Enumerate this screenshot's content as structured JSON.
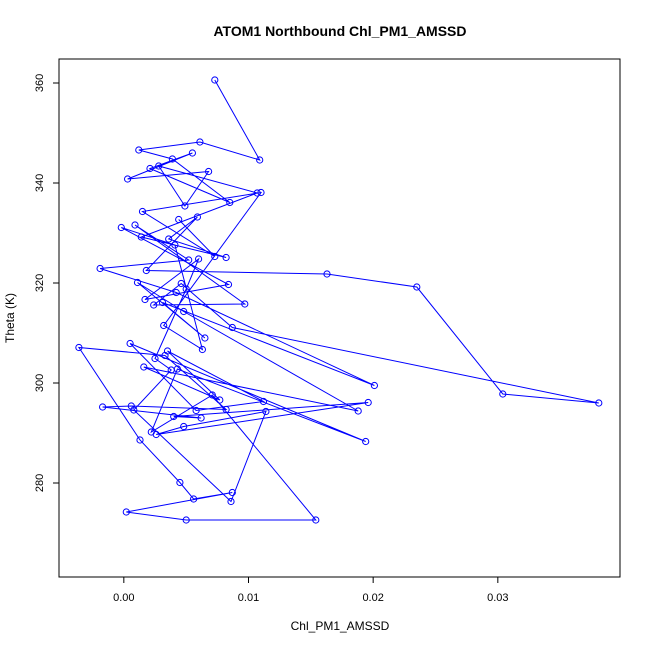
{
  "chart_data": {
    "type": "line",
    "title": "ATOM1 Northbound Chl_PM1_AMSSD",
    "xlabel": "Chl_PM1_AMSSD",
    "ylabel": "Theta (K)",
    "xlim": [
      -0.0052,
      0.0398
    ],
    "ylim": [
      261.2,
      364.8
    ],
    "xticks": [
      0.0,
      0.01,
      0.02,
      0.03
    ],
    "xtick_labels": [
      "0.00",
      "0.01",
      "0.02",
      "0.03"
    ],
    "yticks": [
      280,
      300,
      320,
      340,
      360
    ],
    "ytick_labels": [
      "280",
      "300",
      "320",
      "340",
      "360"
    ],
    "grid": false,
    "legend": "none",
    "series_color": "#0000ff",
    "markers": "open-circle",
    "series": [
      {
        "x": [
          0.0073,
          0.0109,
          0.0061,
          0.0012,
          0.0039,
          0.0085,
          0.0021,
          0.0055,
          0.0003,
          0.0068,
          0.0049,
          0.0028,
          0.0107,
          0.0014,
          0.0082,
          0.0036,
          0.0059,
          0.0018,
          0.0163,
          0.0235,
          0.0304,
          0.0381,
          0.0087,
          0.0046,
          0.0024,
          0.0097,
          0.0009,
          0.0052,
          -0.0019,
          0.0042,
          0.0201,
          0.0031,
          0.0065,
          0.0011,
          0.0048,
          0.0188,
          0.0016,
          0.0077,
          0.0035,
          0.0112,
          0.0058,
          0.0005,
          0.0194,
          0.0043,
          0.0022,
          0.0071,
          0.0154,
          0.005,
          0.0002,
          0.0087,
          0.0056,
          0.0045,
          0.0013,
          -0.0036,
          0.0033,
          0.0082,
          0.0006,
          -0.0017,
          0.0062,
          0.004,
          0.0196,
          0.0026,
          0.0048,
          0.0114,
          0.0086,
          0.0008,
          0.0038,
          0.0025,
          0.005,
          0.006,
          0.0017,
          0.0084,
          -0.0002,
          0.0041,
          0.0063,
          0.0032,
          0.011,
          0.0015,
          0.0073,
          0.0044
        ],
        "y": [
          360.6,
          344.6,
          348.2,
          346.6,
          344.8,
          336.1,
          342.9,
          346.0,
          340.8,
          342.3,
          335.4,
          343.4,
          338.0,
          329.2,
          325.1,
          328.8,
          333.2,
          322.5,
          321.8,
          319.2,
          297.8,
          296.0,
          311.1,
          319.9,
          315.6,
          315.8,
          331.6,
          324.6,
          322.9,
          318.1,
          299.5,
          316.1,
          309.0,
          320.1,
          314.3,
          294.4,
          303.2,
          296.6,
          306.4,
          296.3,
          294.5,
          307.9,
          288.3,
          302.8,
          290.2,
          297.6,
          272.6,
          272.6,
          274.2,
          278.1,
          276.8,
          280.1,
          288.6,
          307.1,
          305.5,
          294.7,
          295.4,
          295.2,
          293.0,
          293.3,
          296.1,
          289.7,
          291.3,
          294.3,
          276.3,
          294.6,
          302.6,
          304.9,
          318.8,
          324.8,
          316.7,
          319.7,
          331.1,
          327.6,
          306.7,
          311.5,
          338.1,
          334.3,
          325.3,
          332.7
        ]
      }
    ]
  }
}
